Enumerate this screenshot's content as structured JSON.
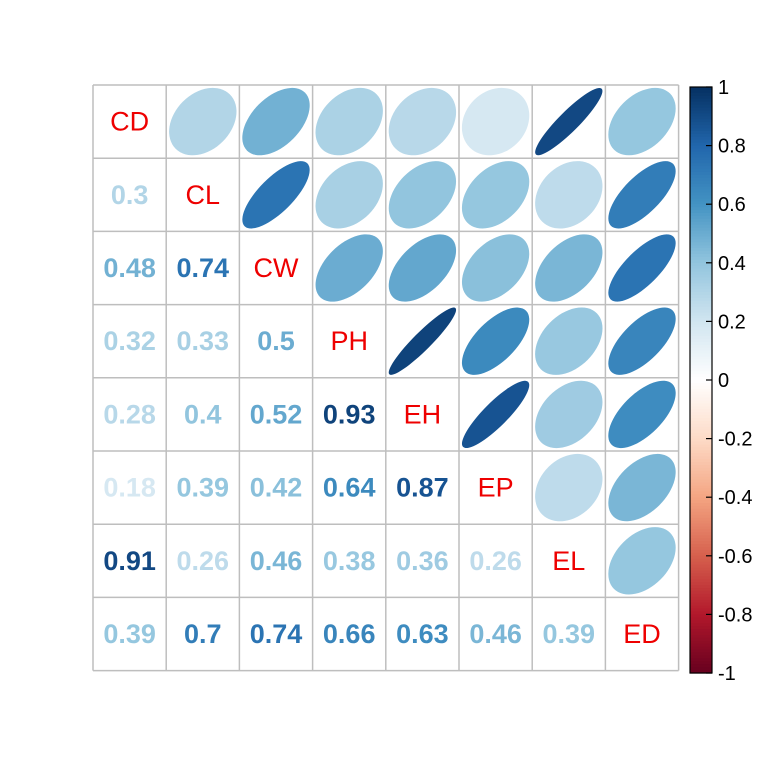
{
  "chart_data": {
    "type": "heatmap",
    "variables": [
      "CD",
      "CL",
      "CW",
      "PH",
      "EH",
      "EP",
      "EL",
      "ED"
    ],
    "matrix": [
      [
        1.0,
        0.3,
        0.48,
        0.32,
        0.28,
        0.18,
        0.91,
        0.39
      ],
      [
        0.3,
        1.0,
        0.74,
        0.33,
        0.4,
        0.39,
        0.26,
        0.7
      ],
      [
        0.48,
        0.74,
        1.0,
        0.5,
        0.52,
        0.42,
        0.46,
        0.74
      ],
      [
        0.32,
        0.33,
        0.5,
        1.0,
        0.93,
        0.64,
        0.38,
        0.66
      ],
      [
        0.28,
        0.4,
        0.52,
        0.93,
        1.0,
        0.87,
        0.36,
        0.63
      ],
      [
        0.18,
        0.39,
        0.42,
        0.64,
        0.87,
        1.0,
        0.26,
        0.46
      ],
      [
        0.91,
        0.26,
        0.46,
        0.38,
        0.36,
        0.26,
        1.0,
        0.39
      ],
      [
        0.39,
        0.7,
        0.74,
        0.66,
        0.63,
        0.46,
        0.39,
        1.0
      ]
    ],
    "lower_labels": [
      [
        "",
        "",
        "",
        "",
        "",
        "",
        "",
        ""
      ],
      [
        "0.3",
        "",
        "",
        "",
        "",
        "",
        "",
        ""
      ],
      [
        "0.48",
        "0.74",
        "",
        "",
        "",
        "",
        "",
        ""
      ],
      [
        "0.32",
        "0.33",
        "0.5",
        "",
        "",
        "",
        "",
        ""
      ],
      [
        "0.28",
        "0.4",
        "0.52",
        "0.93",
        "",
        "",
        "",
        ""
      ],
      [
        "0.18",
        "0.39",
        "0.42",
        "0.64",
        "0.87",
        "",
        "",
        ""
      ],
      [
        "0.91",
        "0.26",
        "0.46",
        "0.38",
        "0.36",
        "0.26",
        "",
        ""
      ],
      [
        "0.39",
        "0.7",
        "0.74",
        "0.66",
        "0.63",
        "0.46",
        "0.39",
        ""
      ]
    ],
    "lower_method": "number",
    "upper_method": "ellipse",
    "diagonal": "variable names",
    "colorbar": {
      "position": "right",
      "range": [
        -1,
        1
      ],
      "ticks": [
        "1",
        "0.8",
        "0.6",
        "0.4",
        "0.2",
        "0",
        "-0.2",
        "-0.4",
        "-0.6",
        "-0.8",
        "-1"
      ]
    },
    "colors": {
      "palette": [
        "#67001F",
        "#B2182B",
        "#D6604D",
        "#F4A582",
        "#FDDBC7",
        "#FFFFFF",
        "#D1E5F0",
        "#92C5DE",
        "#4393C3",
        "#2166AC",
        "#053061"
      ],
      "diagonal_label": "#EE0000",
      "grid": "#BEBEBE"
    }
  }
}
